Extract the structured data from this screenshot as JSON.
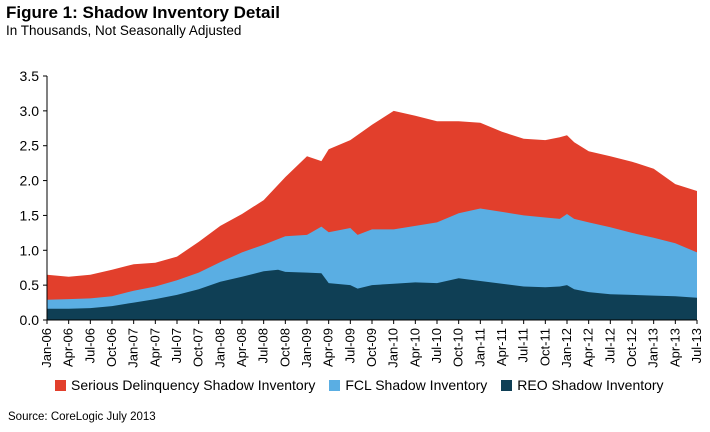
{
  "header": {
    "title": "Figure 1: Shadow Inventory Detail",
    "subtitle": "In Thousands, Not Seasonally Adjusted"
  },
  "source": "Source: CoreLogic  July 2013",
  "chart_data": {
    "type": "area",
    "stacked": true,
    "title": "Figure 1: Shadow Inventory Detail",
    "subtitle": "In Thousands, Not Seasonally Adjusted",
    "xlabel": "",
    "ylabel": "",
    "ylim": [
      0,
      3.5
    ],
    "yticks": [
      "0.0",
      "0.5",
      "1.0",
      "1.5",
      "2.0",
      "2.5",
      "3.0",
      "3.5"
    ],
    "grid": false,
    "legend_position": "bottom",
    "x_start": "Jan-06",
    "x_end": "Jul-13",
    "xticks": [
      "Jan-06",
      "Apr-06",
      "Jul-06",
      "Oct-06",
      "Jan-07",
      "Apr-07",
      "Jul-07",
      "Oct-07",
      "Jan-08",
      "Apr-08",
      "Jul-08",
      "Oct-08",
      "Jan-09",
      "Apr-09",
      "Jul-09",
      "Oct-09",
      "Jan-10",
      "Apr-10",
      "Jul-10",
      "Oct-10",
      "Jan-11",
      "Apr-11",
      "Jul-11",
      "Oct-11",
      "Jan-12",
      "Apr-12",
      "Jul-12",
      "Oct-12",
      "Jan-13",
      "Apr-13",
      "Jul-13"
    ],
    "series": [
      {
        "name": "REO Shadow Inventory",
        "color": "#0f3f55",
        "points": [
          [
            "Jan-06",
            0.16
          ],
          [
            "Apr-06",
            0.16
          ],
          [
            "Jul-06",
            0.17
          ],
          [
            "Oct-06",
            0.2
          ],
          [
            "Jan-07",
            0.25
          ],
          [
            "Apr-07",
            0.3
          ],
          [
            "Jul-07",
            0.36
          ],
          [
            "Oct-07",
            0.44
          ],
          [
            "Jan-08",
            0.55
          ],
          [
            "Apr-08",
            0.62
          ],
          [
            "Jul-08",
            0.7
          ],
          [
            "Sep-08",
            0.72
          ],
          [
            "Oct-08",
            0.69
          ],
          [
            "Jan-09",
            0.68
          ],
          [
            "Mar-09",
            0.67
          ],
          [
            "Apr-09",
            0.53
          ],
          [
            "Jul-09",
            0.5
          ],
          [
            "Aug-09",
            0.45
          ],
          [
            "Oct-09",
            0.5
          ],
          [
            "Jan-10",
            0.52
          ],
          [
            "Apr-10",
            0.54
          ],
          [
            "Jul-10",
            0.53
          ],
          [
            "Oct-10",
            0.6
          ],
          [
            "Jan-11",
            0.56
          ],
          [
            "Apr-11",
            0.52
          ],
          [
            "Jul-11",
            0.48
          ],
          [
            "Oct-11",
            0.47
          ],
          [
            "Dec-11",
            0.48
          ],
          [
            "Jan-12",
            0.5
          ],
          [
            "Feb-12",
            0.44
          ],
          [
            "Apr-12",
            0.4
          ],
          [
            "Jul-12",
            0.37
          ],
          [
            "Oct-12",
            0.36
          ],
          [
            "Jan-13",
            0.35
          ],
          [
            "Apr-13",
            0.34
          ],
          [
            "Jul-13",
            0.32
          ]
        ]
      },
      {
        "name": "FCL Shadow Inventory",
        "color": "#5aaee3",
        "points": [
          [
            "Jan-06",
            0.29
          ],
          [
            "Apr-06",
            0.3
          ],
          [
            "Jul-06",
            0.31
          ],
          [
            "Oct-06",
            0.34
          ],
          [
            "Jan-07",
            0.42
          ],
          [
            "Apr-07",
            0.48
          ],
          [
            "Jul-07",
            0.57
          ],
          [
            "Oct-07",
            0.68
          ],
          [
            "Jan-08",
            0.83
          ],
          [
            "Apr-08",
            0.97
          ],
          [
            "Jul-08",
            1.08
          ],
          [
            "Oct-08",
            1.2
          ],
          [
            "Jan-09",
            1.22
          ],
          [
            "Mar-09",
            1.34
          ],
          [
            "Apr-09",
            1.26
          ],
          [
            "Jul-09",
            1.32
          ],
          [
            "Aug-09",
            1.22
          ],
          [
            "Oct-09",
            1.3
          ],
          [
            "Jan-10",
            1.3
          ],
          [
            "Apr-10",
            1.35
          ],
          [
            "Jul-10",
            1.4
          ],
          [
            "Oct-10",
            1.53
          ],
          [
            "Jan-11",
            1.6
          ],
          [
            "Apr-11",
            1.55
          ],
          [
            "Jul-11",
            1.5
          ],
          [
            "Oct-11",
            1.47
          ],
          [
            "Dec-11",
            1.45
          ],
          [
            "Jan-12",
            1.52
          ],
          [
            "Feb-12",
            1.45
          ],
          [
            "Apr-12",
            1.4
          ],
          [
            "Jul-12",
            1.33
          ],
          [
            "Oct-12",
            1.25
          ],
          [
            "Jan-13",
            1.18
          ],
          [
            "Apr-13",
            1.1
          ],
          [
            "Jul-13",
            0.97
          ]
        ]
      },
      {
        "name": "Serious Delinquency Shadow Inventory",
        "color": "#e23f2c",
        "points": [
          [
            "Jan-06",
            0.65
          ],
          [
            "Apr-06",
            0.62
          ],
          [
            "Jul-06",
            0.65
          ],
          [
            "Oct-06",
            0.72
          ],
          [
            "Jan-07",
            0.8
          ],
          [
            "Apr-07",
            0.82
          ],
          [
            "Jul-07",
            0.91
          ],
          [
            "Oct-07",
            1.12
          ],
          [
            "Jan-08",
            1.35
          ],
          [
            "Apr-08",
            1.52
          ],
          [
            "Jul-08",
            1.72
          ],
          [
            "Oct-08",
            2.05
          ],
          [
            "Jan-09",
            2.35
          ],
          [
            "Mar-09",
            2.28
          ],
          [
            "Apr-09",
            2.45
          ],
          [
            "Jul-09",
            2.58
          ],
          [
            "Oct-09",
            2.8
          ],
          [
            "Jan-10",
            3.0
          ],
          [
            "Apr-10",
            2.93
          ],
          [
            "Jul-10",
            2.85
          ],
          [
            "Oct-10",
            2.85
          ],
          [
            "Jan-11",
            2.83
          ],
          [
            "Apr-11",
            2.7
          ],
          [
            "Jul-11",
            2.6
          ],
          [
            "Oct-11",
            2.58
          ],
          [
            "Dec-11",
            2.62
          ],
          [
            "Jan-12",
            2.65
          ],
          [
            "Feb-12",
            2.55
          ],
          [
            "Apr-12",
            2.42
          ],
          [
            "Jul-12",
            2.35
          ],
          [
            "Oct-12",
            2.27
          ],
          [
            "Jan-13",
            2.17
          ],
          [
            "Apr-13",
            1.95
          ],
          [
            "Jul-13",
            1.85
          ]
        ]
      }
    ]
  },
  "legend": [
    {
      "label": "Serious Delinquency Shadow Inventory",
      "color": "#e23f2c"
    },
    {
      "label": "FCL Shadow Inventory",
      "color": "#5aaee3"
    },
    {
      "label": "REO Shadow Inventory",
      "color": "#0f3f55"
    }
  ]
}
